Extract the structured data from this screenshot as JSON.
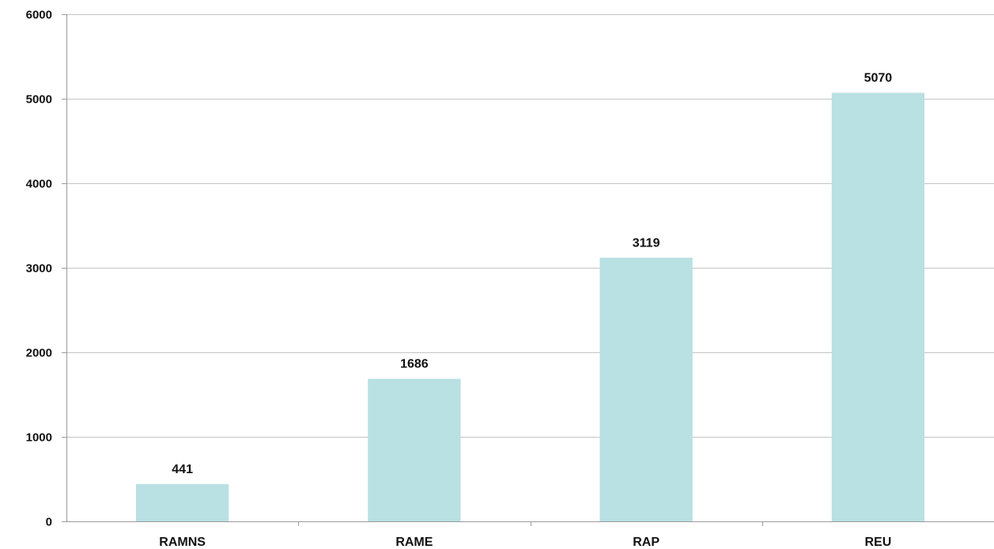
{
  "chart_data": {
    "type": "bar",
    "categories": [
      "RAMNS",
      "RAME",
      "RAP",
      "REU"
    ],
    "values": [
      441,
      1686,
      3119,
      5070
    ],
    "data_labels": [
      "441",
      "1686",
      "3119",
      "5070"
    ],
    "ylim": [
      0,
      6000
    ],
    "y_ticks": [
      0,
      1000,
      2000,
      3000,
      4000,
      5000,
      6000
    ],
    "y_tick_labels": [
      "0",
      "1000",
      "2000",
      "3000",
      "4000",
      "5000",
      "6000"
    ],
    "grid": true,
    "legend": "none",
    "bar_color": "#b9e0e3",
    "grid_color": "#c4c4c4",
    "axis_color": "#9a9a9a"
  }
}
